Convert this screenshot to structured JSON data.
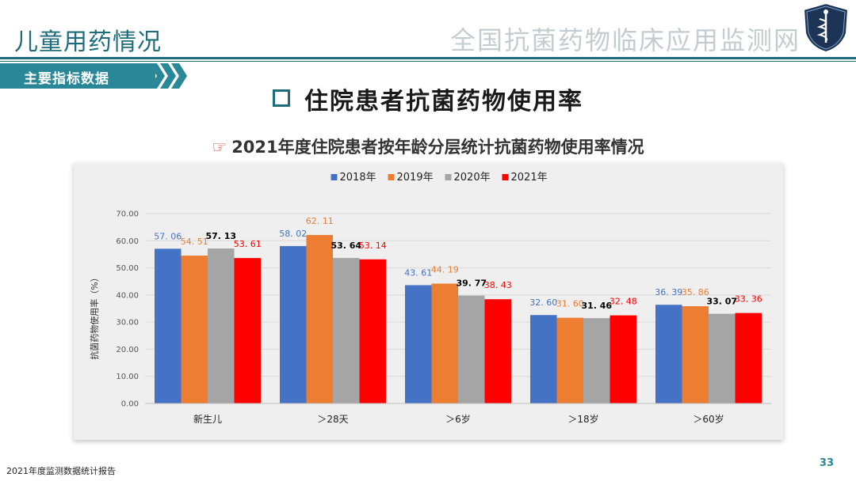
{
  "header": {
    "section_title": "儿童用药情况",
    "brand": "全国抗菌药物临床应用监测网"
  },
  "tag": {
    "label": "主要指标数据"
  },
  "main_title": "住院患者抗菌药物使用率",
  "sub_title": "2021年度住院患者按年龄分层统计抗菌药物使用率情况",
  "footer": {
    "report": "2021年度监测数据统计报告",
    "page": "33"
  },
  "colors": {
    "theme": "#1f6d7c",
    "accent": "#2a8798",
    "series": [
      "#4472c4",
      "#ed7d31",
      "#a5a5a5",
      "#ff0000"
    ],
    "label_colors": [
      "#4472c4",
      "#ed7d31",
      "#000000",
      "#ff0000"
    ]
  },
  "chart_data": {
    "type": "bar",
    "categories": [
      "新生儿",
      "＞28天",
      "＞6岁",
      "＞18岁",
      "＞60岁"
    ],
    "series": [
      {
        "name": "2018年",
        "values": [
          57.06,
          58.02,
          43.61,
          32.6,
          36.39
        ]
      },
      {
        "name": "2019年",
        "values": [
          54.51,
          62.11,
          44.19,
          31.6,
          35.86
        ]
      },
      {
        "name": "2020年",
        "values": [
          57.13,
          53.64,
          39.77,
          31.46,
          33.07
        ]
      },
      {
        "name": "2021年",
        "values": [
          53.61,
          53.14,
          38.43,
          32.48,
          33.36
        ]
      }
    ],
    "value_labels": [
      [
        "57. 06",
        "58. 02",
        "43. 61",
        "32. 60",
        "36. 39"
      ],
      [
        "54. 51",
        "62. 11",
        "44. 19",
        "31. 60",
        "35. 86"
      ],
      [
        "57. 13",
        "53. 64",
        "39. 77",
        "31. 46",
        "33. 07"
      ],
      [
        "53. 61",
        "53. 14",
        "38. 43",
        "32. 48",
        "33. 36"
      ]
    ],
    "ylabel": "抗菌药物使用率（%）",
    "xlabel": "",
    "ylim": [
      0,
      70
    ],
    "yticks": [
      "0.00",
      "10.00",
      "20.00",
      "30.00",
      "40.00",
      "50.00",
      "60.00",
      "70.00"
    ],
    "grid": true,
    "legend": "top-center"
  }
}
